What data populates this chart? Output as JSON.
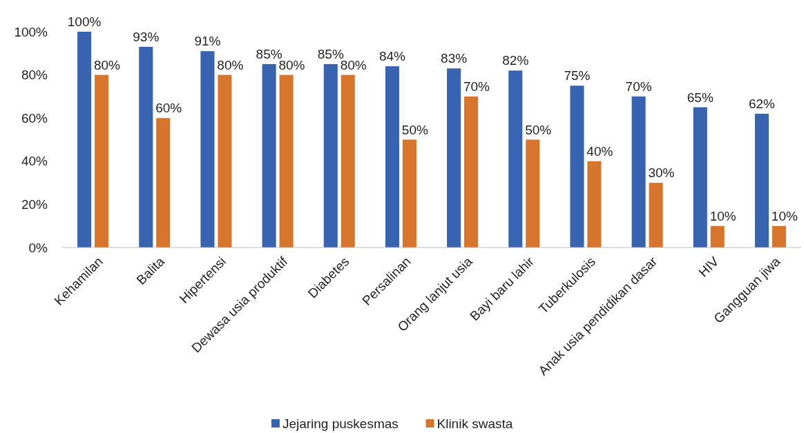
{
  "chart_data": {
    "type": "bar",
    "categories": [
      "Kehamilan",
      "Balita",
      "Hipertensi",
      "Dewasa usia produktif",
      "Diabetes",
      "Persalinan",
      "Orang lanjut usia",
      "Bayi baru lahir",
      "Tuberkulosis",
      "Anak usia pendidikan dasar",
      "HIV",
      "Gangguan jiwa"
    ],
    "series": [
      {
        "name": "Jejaring puskesmas",
        "color": "#3763b0",
        "values": [
          100,
          93,
          91,
          85,
          85,
          84,
          83,
          82,
          75,
          70,
          65,
          62
        ],
        "value_labels": [
          "100%",
          "93%",
          "91%",
          "85%",
          "85%",
          "84%",
          "83%",
          "82%",
          "75%",
          "70%",
          "65%",
          "62%"
        ]
      },
      {
        "name": "Klinik swasta",
        "color": "#d8752d",
        "values": [
          80,
          60,
          80,
          80,
          80,
          50,
          70,
          50,
          40,
          30,
          10,
          10
        ],
        "value_labels": [
          "80%",
          "60%",
          "80%",
          "80%",
          "80%",
          "50%",
          "70%",
          "50%",
          "40%",
          "30%",
          "10%",
          "10%"
        ]
      }
    ],
    "ylim": [
      0,
      100
    ],
    "yticks": [
      {
        "value": 0,
        "label": "0%"
      },
      {
        "value": 20,
        "label": "20%"
      },
      {
        "value": 40,
        "label": "40%"
      },
      {
        "value": 60,
        "label": "60%"
      },
      {
        "value": 80,
        "label": "80%"
      },
      {
        "value": 100,
        "label": "100%"
      }
    ],
    "legend": "bottom"
  }
}
